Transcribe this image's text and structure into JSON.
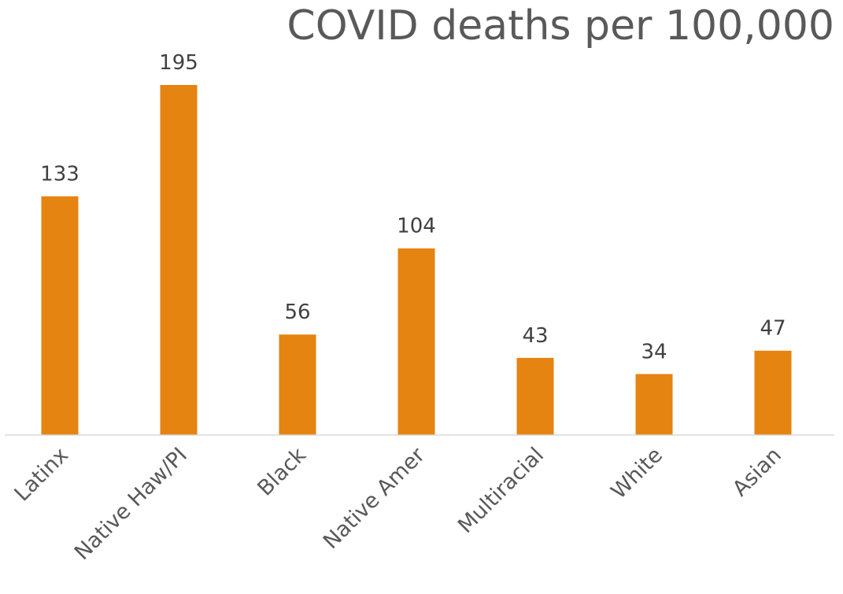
{
  "chart_data": {
    "type": "bar",
    "title": "COVID deaths per 100,000",
    "categories": [
      "Latinx",
      "Native Haw/PI",
      "Black",
      "Native Amer",
      "Multiracial",
      "White",
      "Asian"
    ],
    "values": [
      133,
      195,
      56,
      104,
      43,
      34,
      47
    ],
    "data_labels": [
      "133",
      "195",
      "56",
      "104",
      "43",
      "34",
      "47"
    ],
    "xlabel": "",
    "ylabel": "",
    "ylim": [
      0,
      195
    ],
    "grid": false,
    "legend": "none",
    "colors": {
      "bar": "#E58411",
      "axis": "#D9D9D9"
    }
  }
}
